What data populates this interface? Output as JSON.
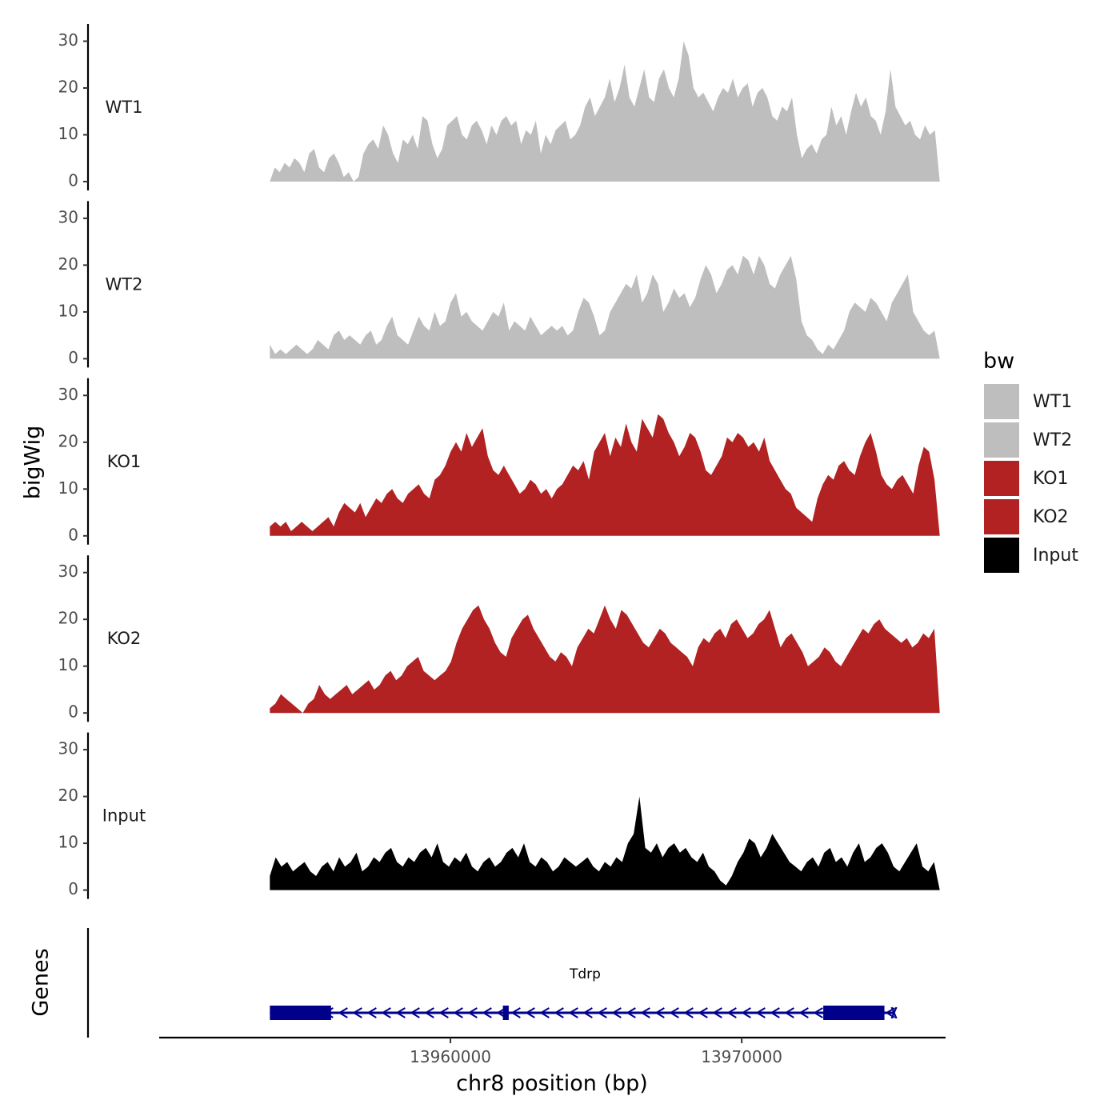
{
  "chart_data": {
    "type": "area",
    "x": {
      "label": "chr8 position (bp)",
      "min": 13950000,
      "max": 13977000,
      "ticks": [
        13960000,
        13970000
      ],
      "tick_labels": [
        "13960000",
        "13970000"
      ],
      "track_start": 13953800,
      "track_end": 13976800
    },
    "y": {
      "label": "bigWig",
      "range": [
        0,
        32
      ],
      "ticks": [
        0,
        10,
        20,
        30
      ],
      "tick_labels": [
        "0",
        "10",
        "20",
        "30"
      ]
    },
    "tracks": [
      {
        "name": "WT1",
        "color": "#bebebe",
        "values": [
          0,
          3,
          2,
          4,
          3,
          5,
          4,
          2,
          6,
          7,
          3,
          2,
          5,
          6,
          4,
          1,
          2,
          0,
          1,
          6,
          8,
          9,
          7,
          12,
          10,
          6,
          4,
          9,
          8,
          10,
          7,
          14,
          13,
          8,
          5,
          7,
          12,
          13,
          14,
          10,
          9,
          12,
          13,
          11,
          8,
          12,
          10,
          13,
          14,
          12,
          13,
          8,
          11,
          10,
          13,
          6,
          10,
          8,
          11,
          12,
          13,
          9,
          10,
          12,
          16,
          18,
          14,
          16,
          18,
          22,
          17,
          20,
          25,
          18,
          16,
          20,
          24,
          18,
          17,
          22,
          24,
          20,
          18,
          22,
          30,
          27,
          20,
          18,
          19,
          17,
          15,
          18,
          20,
          19,
          22,
          18,
          20,
          21,
          16,
          19,
          20,
          18,
          14,
          13,
          16,
          15,
          18,
          10,
          5,
          7,
          8,
          6,
          9,
          10,
          16,
          12,
          14,
          10,
          15,
          19,
          16,
          18,
          14,
          13,
          10,
          15,
          24,
          16,
          14,
          12,
          13,
          10,
          9,
          12,
          10,
          11,
          0
        ]
      },
      {
        "name": "WT2",
        "color": "#bebebe",
        "values": [
          3,
          1,
          2,
          1,
          2,
          3,
          2,
          1,
          2,
          4,
          3,
          2,
          5,
          6,
          4,
          5,
          4,
          3,
          5,
          6,
          3,
          4,
          7,
          9,
          5,
          4,
          3,
          6,
          9,
          7,
          6,
          10,
          7,
          8,
          12,
          14,
          9,
          10,
          8,
          7,
          6,
          8,
          10,
          9,
          12,
          6,
          8,
          7,
          6,
          9,
          7,
          5,
          6,
          7,
          6,
          7,
          5,
          6,
          10,
          13,
          12,
          9,
          5,
          6,
          10,
          12,
          14,
          16,
          15,
          18,
          12,
          14,
          18,
          16,
          10,
          12,
          15,
          13,
          14,
          11,
          13,
          17,
          20,
          18,
          14,
          16,
          19,
          20,
          18,
          22,
          21,
          18,
          22,
          20,
          16,
          15,
          18,
          20,
          22,
          17,
          8,
          5,
          4,
          2,
          1,
          3,
          2,
          4,
          6,
          10,
          12,
          11,
          10,
          13,
          12,
          10,
          8,
          12,
          14,
          16,
          18,
          10,
          8,
          6,
          5,
          6,
          0
        ]
      },
      {
        "name": "KO1",
        "color": "#b22222",
        "values": [
          2,
          3,
          2,
          3,
          1,
          2,
          3,
          2,
          1,
          2,
          3,
          4,
          2,
          5,
          7,
          6,
          5,
          7,
          4,
          6,
          8,
          7,
          9,
          10,
          8,
          7,
          9,
          10,
          11,
          9,
          8,
          12,
          13,
          15,
          18,
          20,
          18,
          22,
          19,
          21,
          23,
          17,
          14,
          13,
          15,
          13,
          11,
          9,
          10,
          12,
          11,
          9,
          10,
          8,
          10,
          11,
          13,
          15,
          14,
          16,
          12,
          18,
          20,
          22,
          17,
          21,
          19,
          24,
          20,
          18,
          25,
          23,
          21,
          26,
          25,
          22,
          20,
          17,
          19,
          22,
          21,
          18,
          14,
          13,
          15,
          17,
          21,
          20,
          22,
          21,
          19,
          20,
          18,
          21,
          16,
          14,
          12,
          10,
          9,
          6,
          5,
          4,
          3,
          8,
          11,
          13,
          12,
          15,
          16,
          14,
          13,
          17,
          20,
          22,
          18,
          13,
          11,
          10,
          12,
          13,
          11,
          9,
          15,
          19,
          18,
          12,
          0
        ]
      },
      {
        "name": "KO2",
        "color": "#b22222",
        "values": [
          1,
          2,
          4,
          3,
          2,
          1,
          0,
          2,
          3,
          6,
          4,
          3,
          4,
          5,
          6,
          4,
          5,
          6,
          7,
          5,
          6,
          8,
          9,
          7,
          8,
          10,
          11,
          12,
          9,
          8,
          7,
          8,
          9,
          11,
          15,
          18,
          20,
          22,
          23,
          20,
          18,
          15,
          13,
          12,
          16,
          18,
          20,
          21,
          18,
          16,
          14,
          12,
          11,
          13,
          12,
          10,
          14,
          16,
          18,
          17,
          20,
          23,
          20,
          18,
          22,
          21,
          19,
          17,
          15,
          14,
          16,
          18,
          17,
          15,
          14,
          13,
          12,
          10,
          14,
          16,
          15,
          17,
          18,
          16,
          19,
          20,
          18,
          16,
          17,
          19,
          20,
          22,
          18,
          14,
          16,
          17,
          15,
          13,
          10,
          11,
          12,
          14,
          13,
          11,
          10,
          12,
          14,
          16,
          18,
          17,
          19,
          20,
          18,
          17,
          16,
          15,
          16,
          14,
          15,
          17,
          16,
          18,
          0
        ]
      },
      {
        "name": "Input",
        "color": "#000000",
        "values": [
          3,
          7,
          5,
          6,
          4,
          5,
          6,
          4,
          3,
          5,
          6,
          4,
          7,
          5,
          6,
          8,
          4,
          5,
          7,
          6,
          8,
          9,
          6,
          5,
          7,
          6,
          8,
          9,
          7,
          10,
          6,
          5,
          7,
          6,
          8,
          5,
          4,
          6,
          7,
          5,
          6,
          8,
          9,
          7,
          10,
          6,
          5,
          7,
          6,
          4,
          5,
          7,
          6,
          5,
          6,
          7,
          5,
          4,
          6,
          5,
          7,
          6,
          10,
          12,
          20,
          9,
          8,
          10,
          7,
          9,
          10,
          8,
          9,
          7,
          6,
          8,
          5,
          4,
          2,
          1,
          3,
          6,
          8,
          11,
          10,
          7,
          9,
          12,
          10,
          8,
          6,
          5,
          4,
          6,
          7,
          5,
          8,
          9,
          6,
          7,
          5,
          8,
          10,
          6,
          7,
          9,
          10,
          8,
          5,
          4,
          6,
          8,
          10,
          5,
          4,
          6,
          0
        ]
      }
    ],
    "legend": {
      "title": "bw",
      "position": "right",
      "entries": [
        {
          "label": "WT1",
          "color": "#bebebe"
        },
        {
          "label": "WT2",
          "color": "#bebebe"
        },
        {
          "label": "KO1",
          "color": "#b22222"
        },
        {
          "label": "KO2",
          "color": "#b22222"
        },
        {
          "label": "Input",
          "color": "#000000"
        }
      ]
    },
    "genes_track": {
      "title": "Genes",
      "color": "#00008b",
      "genes": [
        {
          "name": "Tdrp",
          "strand": "-",
          "start": 13953800,
          "end": 13974900,
          "exons": [
            {
              "start": 13953800,
              "end": 13955900,
              "type": "thick"
            },
            {
              "start": 13955600,
              "end": 13955700,
              "type": "thin"
            },
            {
              "start": 13961800,
              "end": 13962000,
              "type": "thin"
            },
            {
              "start": 13972800,
              "end": 13974900,
              "type": "thick"
            }
          ]
        }
      ]
    }
  }
}
